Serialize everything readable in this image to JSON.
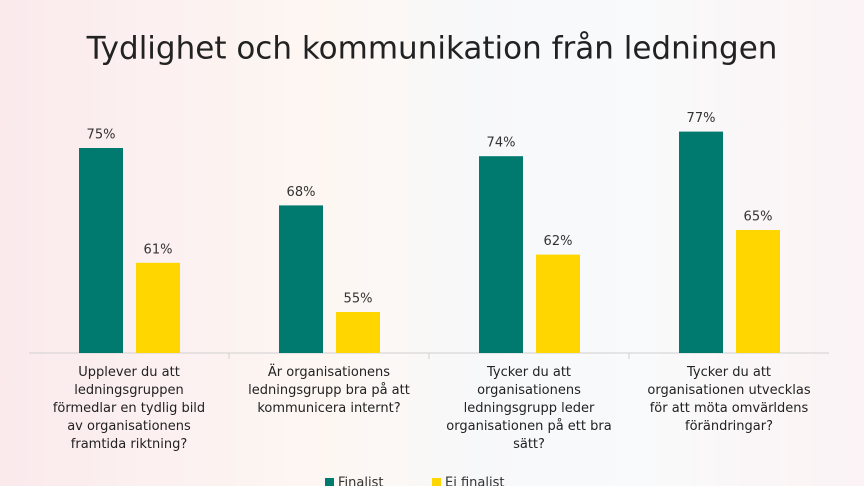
{
  "chart_data": {
    "type": "bar",
    "title": "Tydlighet och kommunikation från ledningen",
    "categories": [
      "Upplever du att ledningsgruppen förmedlar en tydlig bild av organisationens framtida riktning?",
      "Är organisationens ledningsgrupp bra på att kommunicera internt?",
      "Tycker du att organisationens ledningsgrupp leder organisationen på ett bra sätt?",
      "Tycker du att organisationen utvecklas för att möta omvärldens förändringar?"
    ],
    "series": [
      {
        "name": "Finalist",
        "color": "#007a6e",
        "values": [
          75,
          68,
          74,
          77
        ],
        "value_labels": [
          "75%",
          "68%",
          "74%",
          "77%"
        ]
      },
      {
        "name": "Ej finalist",
        "color": "#ffd600",
        "values": [
          61,
          55,
          62,
          65
        ],
        "value_labels": [
          "61%",
          "55%",
          "62%",
          "65%"
        ]
      }
    ],
    "ylim": [
      50,
      80
    ]
  }
}
